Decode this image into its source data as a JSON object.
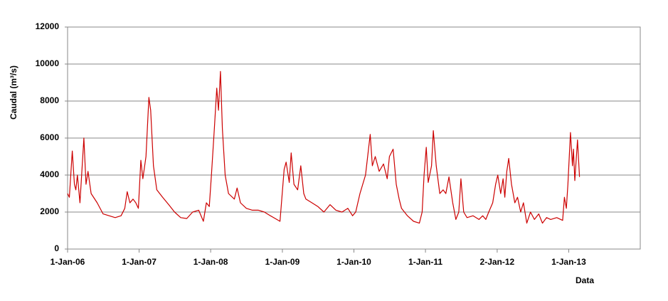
{
  "chart_data": {
    "type": "line",
    "xlabel": "Data",
    "ylabel": "Caudal (m³/s)",
    "xlim": [
      "2006-01-01",
      "2014-01-01"
    ],
    "xticks": [
      {
        "value": "2006-01-01",
        "label": "1-Jan-06"
      },
      {
        "value": "2007-01-01",
        "label": "1-Jan-07"
      },
      {
        "value": "2008-01-01",
        "label": "1-Jan-08"
      },
      {
        "value": "2009-01-01",
        "label": "1-Jan-09"
      },
      {
        "value": "2010-01-01",
        "label": "1-Jan-10"
      },
      {
        "value": "2011-01-01",
        "label": "1-Jan-11"
      },
      {
        "value": "2012-01-02",
        "label": "2-Jan-12"
      },
      {
        "value": "2013-01-01",
        "label": "1-Jan-13"
      }
    ],
    "ylim": [
      0,
      12000
    ],
    "yticks": [
      0,
      2000,
      4000,
      6000,
      8000,
      10000,
      12000
    ],
    "grid": true,
    "x": [
      "2006-01-01",
      "2006-01-10",
      "2006-01-25",
      "2006-02-05",
      "2006-02-12",
      "2006-02-20",
      "2006-03-05",
      "2006-03-25",
      "2006-04-05",
      "2006-04-15",
      "2006-05-01",
      "2006-06-01",
      "2006-07-01",
      "2006-08-01",
      "2006-09-01",
      "2006-10-01",
      "2006-10-20",
      "2006-11-01",
      "2006-11-15",
      "2006-12-01",
      "2006-12-15",
      "2006-12-28",
      "2007-01-10",
      "2007-01-20",
      "2007-02-05",
      "2007-02-20",
      "2007-03-01",
      "2007-03-15",
      "2007-04-01",
      "2007-05-01",
      "2007-06-01",
      "2007-07-01",
      "2007-08-01",
      "2007-09-01",
      "2007-10-01",
      "2007-11-01",
      "2007-11-25",
      "2007-12-10",
      "2007-12-25",
      "2008-01-05",
      "2008-01-20",
      "2008-02-01",
      "2008-02-10",
      "2008-02-20",
      "2008-03-01",
      "2008-03-15",
      "2008-04-01",
      "2008-05-01",
      "2008-05-15",
      "2008-06-01",
      "2008-07-01",
      "2008-08-01",
      "2008-09-01",
      "2008-10-01",
      "2008-11-01",
      "2008-12-20",
      "2009-01-10",
      "2009-01-20",
      "2009-02-05",
      "2009-02-15",
      "2009-03-01",
      "2009-03-20",
      "2009-04-05",
      "2009-04-20",
      "2009-05-01",
      "2009-06-01",
      "2009-07-01",
      "2009-08-01",
      "2009-09-01",
      "2009-10-01",
      "2009-11-01",
      "2009-12-01",
      "2009-12-25",
      "2010-01-10",
      "2010-02-01",
      "2010-03-01",
      "2010-03-25",
      "2010-04-05",
      "2010-04-20",
      "2010-05-10",
      "2010-06-01",
      "2010-06-20",
      "2010-07-01",
      "2010-07-20",
      "2010-08-05",
      "2010-08-20",
      "2010-09-01",
      "2010-10-01",
      "2010-11-01",
      "2010-12-01",
      "2010-12-15",
      "2010-12-25",
      "2011-01-05",
      "2011-01-15",
      "2011-02-01",
      "2011-02-10",
      "2011-02-25",
      "2011-03-15",
      "2011-04-01",
      "2011-04-15",
      "2011-05-01",
      "2011-05-20",
      "2011-06-05",
      "2011-06-20",
      "2011-07-01",
      "2011-07-15",
      "2011-08-01",
      "2011-09-01",
      "2011-10-01",
      "2011-10-20",
      "2011-11-05",
      "2011-11-20",
      "2011-12-10",
      "2011-12-25",
      "2012-01-05",
      "2012-01-20",
      "2012-02-01",
      "2012-02-10",
      "2012-02-20",
      "2012-03-01",
      "2012-03-15",
      "2012-04-01",
      "2012-04-15",
      "2012-05-01",
      "2012-05-15",
      "2012-06-01",
      "2012-06-20",
      "2012-07-10",
      "2012-08-01",
      "2012-08-20",
      "2012-09-10",
      "2012-10-01",
      "2012-11-01",
      "2012-12-01",
      "2012-12-10",
      "2012-12-20",
      "2012-12-28",
      "2013-01-10",
      "2013-01-20",
      "2013-01-25",
      "2013-02-01",
      "2013-02-15",
      "2013-02-25"
    ],
    "series": [
      {
        "name": "Caudal",
        "color": "#cc0000",
        "values": [
          3000,
          2800,
          5300,
          3500,
          3200,
          4000,
          2500,
          6000,
          3500,
          4200,
          3000,
          2500,
          1900,
          1800,
          1700,
          1800,
          2200,
          3100,
          2500,
          2700,
          2500,
          2200,
          4800,
          3800,
          5000,
          8200,
          7500,
          4500,
          3200,
          2800,
          2400,
          2000,
          1700,
          1650,
          2000,
          2100,
          1500,
          2500,
          2300,
          4000,
          6500,
          8700,
          7500,
          9600,
          6500,
          4000,
          3000,
          2700,
          3300,
          2500,
          2200,
          2100,
          2100,
          2000,
          1800,
          1500,
          4300,
          4700,
          3600,
          5200,
          3500,
          3200,
          4500,
          3000,
          2700,
          2500,
          2300,
          2000,
          2400,
          2100,
          2000,
          2200,
          1800,
          2000,
          3000,
          4000,
          6200,
          4500,
          5000,
          4200,
          4600,
          3800,
          5000,
          5400,
          3500,
          2700,
          2200,
          1800,
          1500,
          1400,
          2000,
          4000,
          5500,
          3600,
          4500,
          6400,
          4500,
          3000,
          3200,
          3000,
          3900,
          2500,
          1600,
          2000,
          3800,
          2000,
          1700,
          1800,
          1600,
          1800,
          1600,
          2000,
          2500,
          3500,
          4000,
          3000,
          3800,
          2800,
          4200,
          4900,
          3500,
          2500,
          2800,
          2000,
          2500,
          1400,
          2000,
          1600,
          1900,
          1400,
          1700,
          1600,
          1700,
          1550,
          2800,
          2200,
          3500,
          6300,
          4500,
          5400,
          3700,
          5900,
          3900
        ]
      }
    ]
  }
}
